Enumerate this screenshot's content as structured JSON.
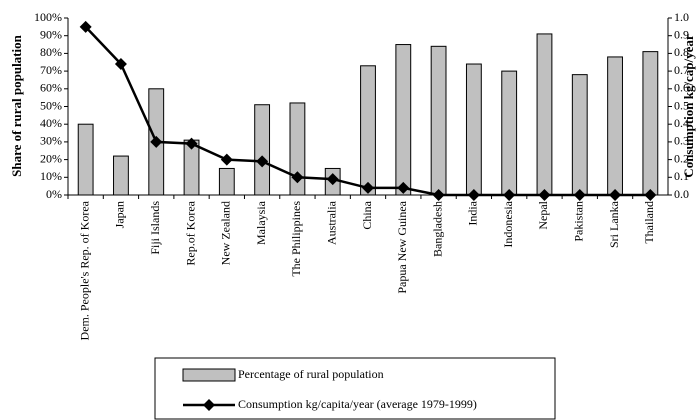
{
  "chart_data": {
    "type": "bar",
    "y_label": "Share of rural population",
    "y2_label": "Consumption kg/cap/year",
    "categories": [
      "Dem. People's Rep. of Korea",
      "Japan",
      "Fiji Islands",
      "Rep.of Korea",
      "New Zealand",
      "Malaysia",
      "The Philippines",
      "Australia",
      "China",
      "Papua New Guinea",
      "Bangladesh",
      "India",
      "Indonesia",
      "Nepal",
      "Pakistan",
      "Sri Lanka",
      "Thailand"
    ],
    "series": [
      {
        "name": "Percentage of rural population",
        "type": "bar",
        "color": "#c0c0c0",
        "values": [
          40,
          22,
          60,
          31,
          15,
          51,
          52,
          15,
          73,
          85,
          84,
          74,
          70,
          91,
          68,
          78,
          81
        ]
      },
      {
        "name": "Consumption kg/capita/year (average 1979-1999)",
        "type": "line",
        "axis": "y2",
        "color": "#000000",
        "values": [
          0.95,
          0.74,
          0.3,
          0.29,
          0.2,
          0.19,
          0.1,
          0.09,
          0.04,
          0.04,
          0,
          0,
          0,
          0,
          0,
          0,
          0
        ]
      }
    ],
    "ylim": [
      0,
      100
    ],
    "yticks": [
      {
        "value": 0,
        "label": "0%"
      },
      {
        "value": 10,
        "label": "10%"
      },
      {
        "value": 20,
        "label": "20%"
      },
      {
        "value": 30,
        "label": "30%"
      },
      {
        "value": 40,
        "label": "40%"
      },
      {
        "value": 50,
        "label": "50%"
      },
      {
        "value": 60,
        "label": "60%"
      },
      {
        "value": 70,
        "label": "70%"
      },
      {
        "value": 80,
        "label": "80%"
      },
      {
        "value": 90,
        "label": "90%"
      },
      {
        "value": 100,
        "label": "100%"
      }
    ],
    "y2lim": [
      0,
      1
    ],
    "y2ticks": [
      {
        "value": 0,
        "label": "0.0"
      },
      0.1,
      0.2,
      0.3,
      0.4,
      0.5,
      0.6,
      0.7,
      0.8,
      0.9,
      {
        "value": 1,
        "label": "1.0"
      }
    ],
    "grid": false
  }
}
